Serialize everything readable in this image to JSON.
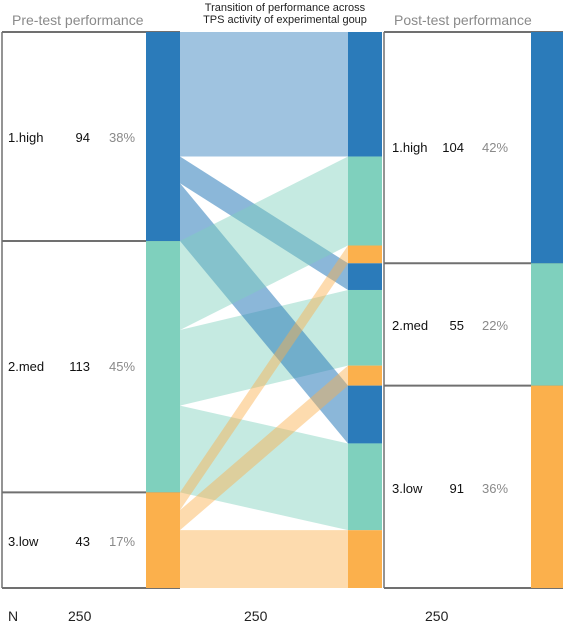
{
  "headers": {
    "pre": "Pre-test performance",
    "middle_line1": "Transition of performance across",
    "middle_line2": "TPS activity of experimental goup",
    "post": "Post-test performance"
  },
  "colors": {
    "high": "#2b7bba",
    "med": "#7fd0bd",
    "low": "#fbb04c",
    "border": "#707070",
    "pct_text": "#8a8a8a"
  },
  "pre": {
    "rows": [
      {
        "label": "1.high",
        "n": "94",
        "pct": "38%"
      },
      {
        "label": "2.med",
        "n": "113",
        "pct": "45%"
      },
      {
        "label": "3.low",
        "n": "43",
        "pct": "17%"
      }
    ]
  },
  "post": {
    "rows": [
      {
        "label": "1.high",
        "n": "104",
        "pct": "42%"
      },
      {
        "label": "2.med",
        "n": "55",
        "pct": "22%"
      },
      {
        "label": "3.low",
        "n": "91",
        "pct": "36%"
      }
    ]
  },
  "footer": {
    "n_label": "N",
    "pre_total": "250",
    "mid_total": "250",
    "post_total": "250"
  },
  "chart_data": {
    "type": "sankey",
    "title": "Transition of performance across TPS activity of experimental goup",
    "total": 250,
    "categories": [
      "high",
      "med",
      "low"
    ],
    "pre": {
      "high": 94,
      "med": 113,
      "low": 43
    },
    "post": {
      "high": 104,
      "med": 55,
      "low": 91
    },
    "flows": [
      {
        "from": "high",
        "to": "high",
        "value": 56
      },
      {
        "from": "high",
        "to": "med",
        "value": 12
      },
      {
        "from": "high",
        "to": "low",
        "value": 26
      },
      {
        "from": "med",
        "to": "high",
        "value": 40
      },
      {
        "from": "med",
        "to": "med",
        "value": 34
      },
      {
        "from": "med",
        "to": "low",
        "value": 39
      },
      {
        "from": "low",
        "to": "high",
        "value": 8
      },
      {
        "from": "low",
        "to": "med",
        "value": 9
      },
      {
        "from": "low",
        "to": "low",
        "value": 26
      }
    ]
  }
}
